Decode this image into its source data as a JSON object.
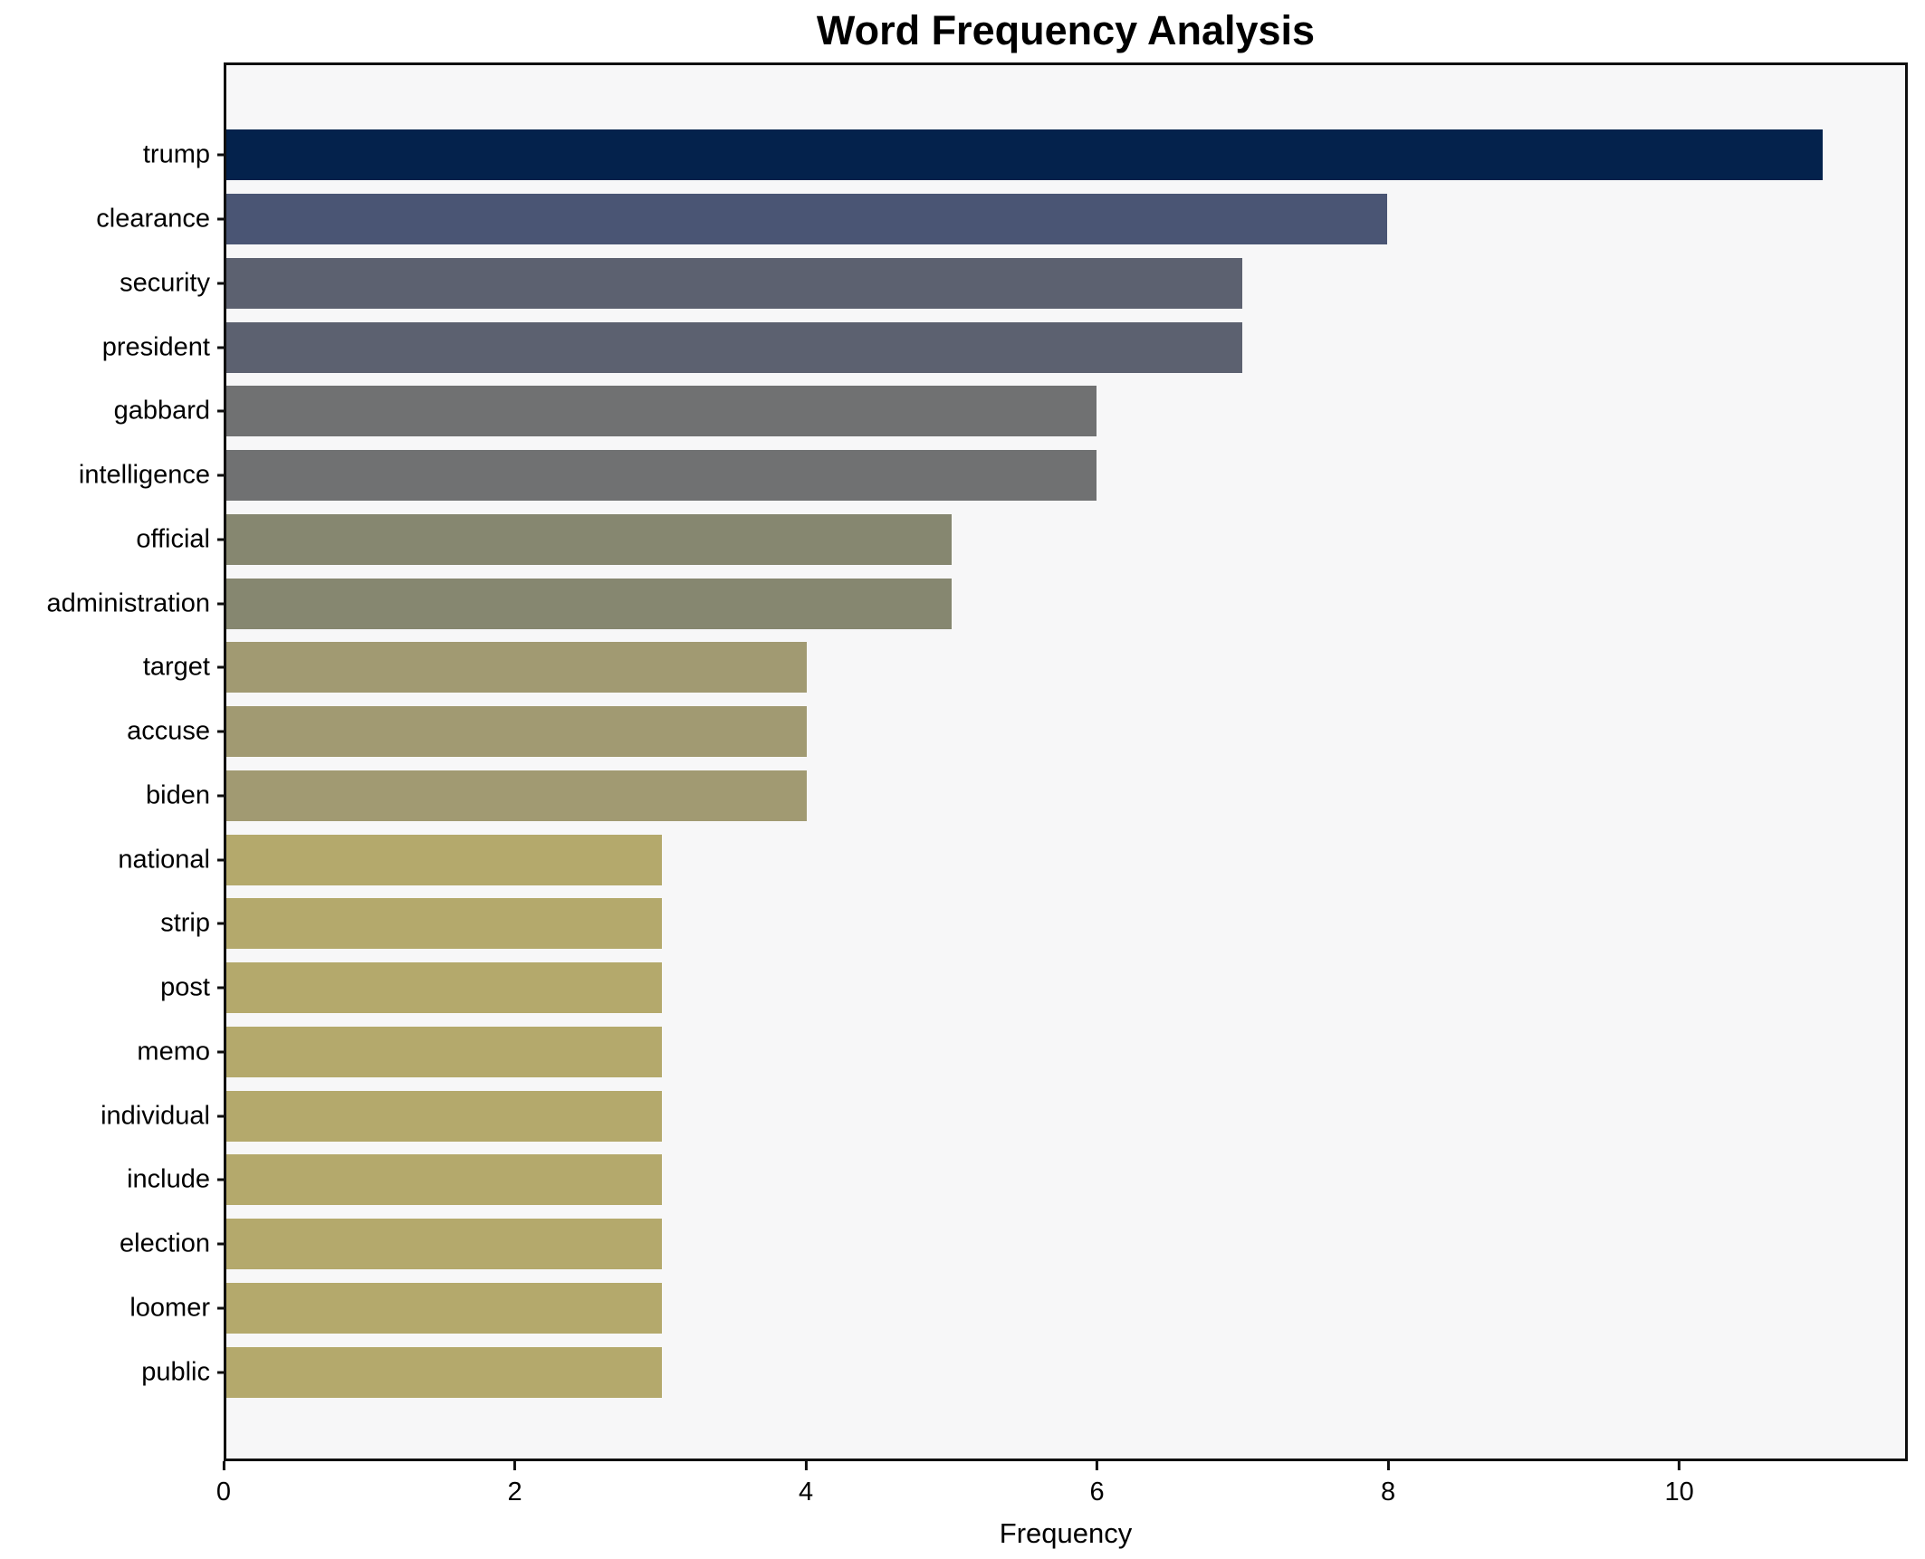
{
  "title": "Word Frequency Analysis",
  "chart_data": {
    "type": "bar",
    "orientation": "horizontal",
    "title": "Word Frequency Analysis",
    "xlabel": "Frequency",
    "ylabel": "",
    "categories": [
      "trump",
      "clearance",
      "security",
      "president",
      "gabbard",
      "intelligence",
      "official",
      "administration",
      "target",
      "accuse",
      "biden",
      "national",
      "strip",
      "post",
      "memo",
      "individual",
      "include",
      "election",
      "loomer",
      "public"
    ],
    "values": [
      11,
      8,
      7,
      7,
      6,
      6,
      5,
      5,
      4,
      4,
      4,
      3,
      3,
      3,
      3,
      3,
      3,
      3,
      3,
      3
    ],
    "bar_colors": [
      "#04224c",
      "#4a5574",
      "#5c6170",
      "#5c6170",
      "#707172",
      "#707172",
      "#868770",
      "#868770",
      "#a19a72",
      "#a19a72",
      "#a19a72",
      "#b4a96c",
      "#b4a96c",
      "#b4a96c",
      "#b4a96c",
      "#b4a96c",
      "#b4a96c",
      "#b4a96c",
      "#b4a96c",
      "#b4a96c"
    ],
    "x_ticks": [
      0,
      2,
      4,
      6,
      8,
      10
    ],
    "xlim": [
      0,
      11.57
    ],
    "grid": false,
    "legend": "none",
    "plot_background": "#f7f7f8",
    "figure_background": "#ffffff",
    "spine_color": "#0f0f0f",
    "text_color": "#000000"
  }
}
